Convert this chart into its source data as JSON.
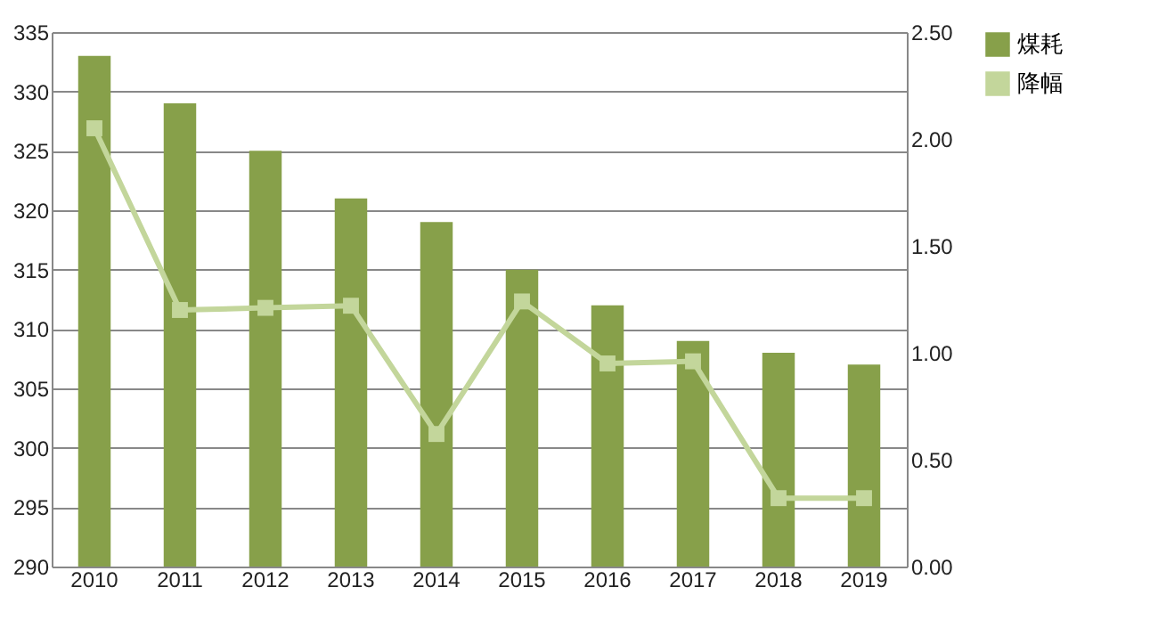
{
  "chart_data": {
    "type": "bar",
    "categories": [
      "2010",
      "2011",
      "2012",
      "2013",
      "2014",
      "2015",
      "2016",
      "2017",
      "2018",
      "2019"
    ],
    "series": [
      {
        "name": "煤耗",
        "color": "#87a04a",
        "values": [
          333,
          329,
          325,
          321,
          319,
          315,
          312,
          309,
          308,
          307
        ]
      },
      {
        "name": "降幅",
        "type": "line",
        "axis": "y2",
        "color": "#c3d69b",
        "values": [
          2.05,
          1.2,
          1.21,
          1.22,
          0.62,
          1.24,
          0.95,
          0.96,
          0.32,
          0.32
        ]
      }
    ],
    "ylim": [
      290,
      335
    ],
    "yticks": [
      290,
      295,
      300,
      305,
      310,
      315,
      320,
      325,
      330,
      335
    ],
    "y2lim": [
      0,
      2.5
    ],
    "y2ticks": [
      {
        "value": 0,
        "label": "0.00"
      },
      {
        "value": 0.5,
        "label": "0.50"
      },
      {
        "value": 1,
        "label": "1.00"
      },
      {
        "value": 1.5,
        "label": "1.50"
      },
      {
        "value": 2,
        "label": "2.00"
      },
      {
        "value": 2.5,
        "label": "2.50"
      }
    ],
    "grid": "y",
    "legend": "right",
    "marker": "square"
  }
}
